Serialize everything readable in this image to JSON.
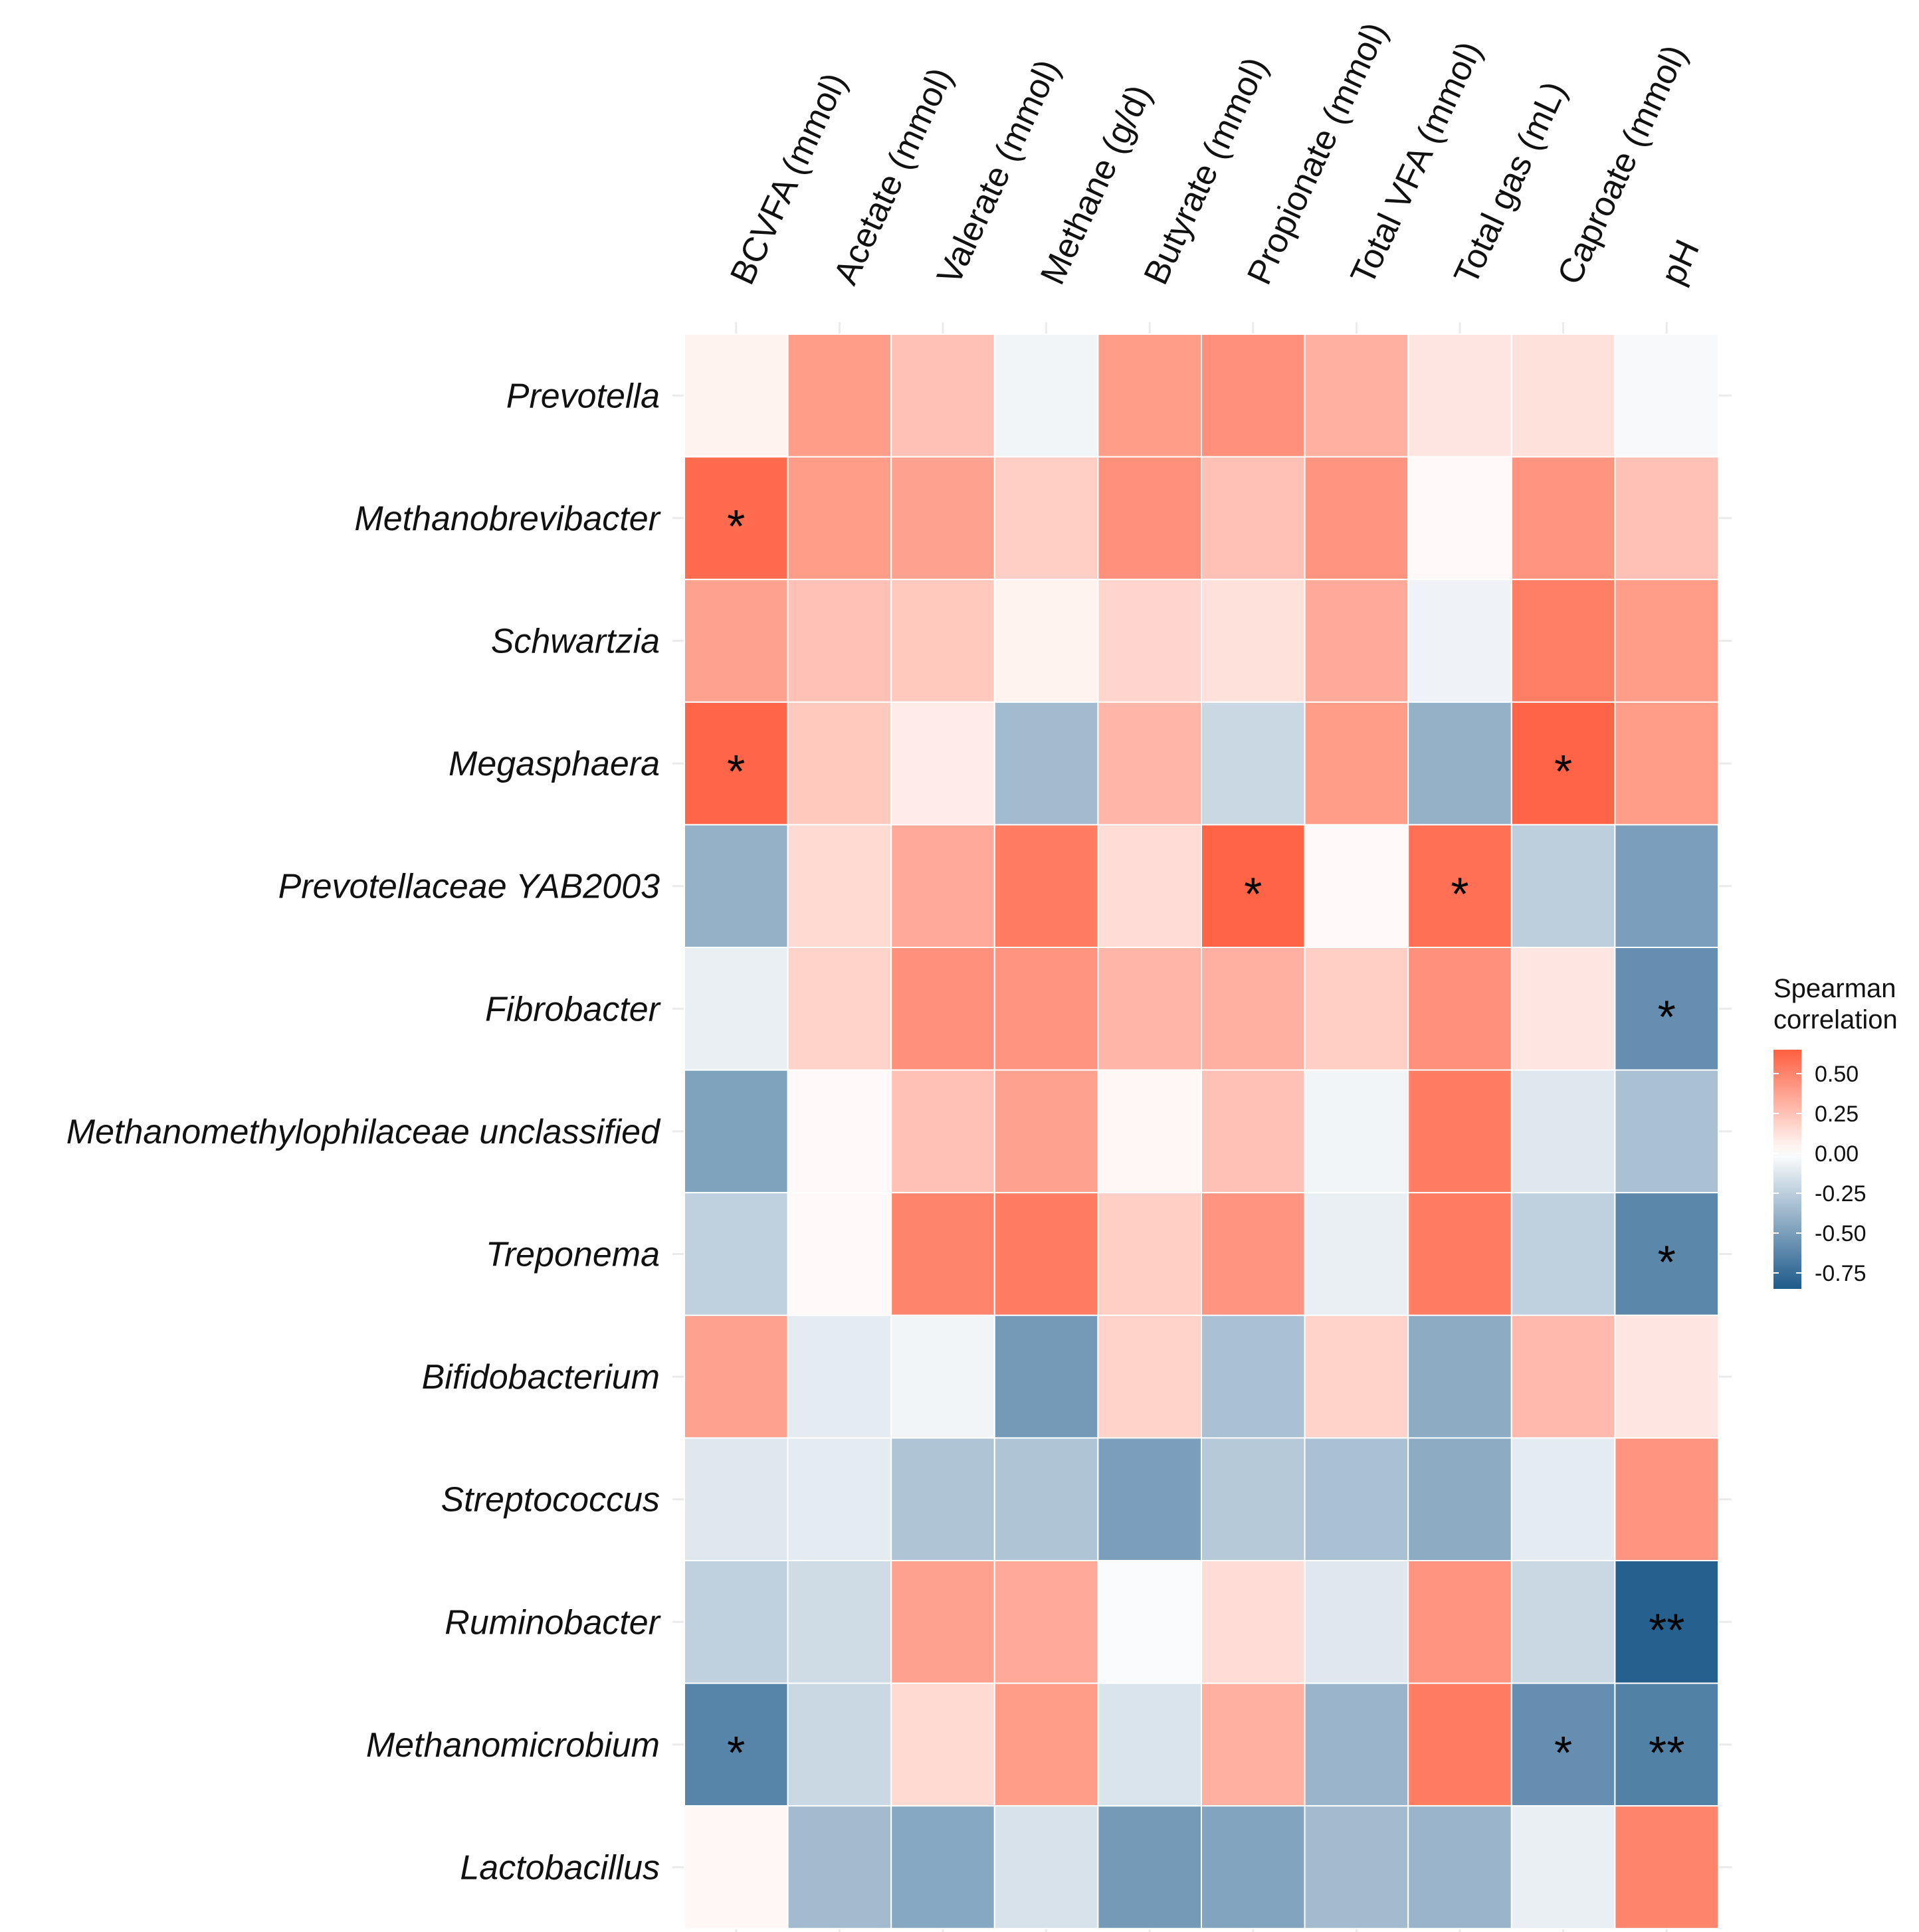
{
  "chart_data": {
    "type": "heatmap",
    "title": "",
    "xlabel": "",
    "ylabel": "",
    "columns": [
      "BCVFA (mmol)",
      "Acetate (mmol)",
      "Valerate (mmol)",
      "Methane (g/d)",
      "Butyrate (mmol)",
      "Propionate (mmol)",
      "Total VFA (mmol)",
      "Total gas (mL)",
      "Caproate (mmol)",
      "pH"
    ],
    "rows": [
      "Prevotella",
      "Methanobrevibacter",
      "Schwartzia",
      "Megasphaera",
      "Prevotellaceae YAB2003",
      "Fibrobacter",
      "Methanomethylophilaceae unclassified",
      "Treponema",
      "Bifidobacterium",
      "Streptococcus",
      "Ruminobacter",
      "Methanomicrobium",
      "Lactobacillus"
    ],
    "values": [
      [
        0.05,
        0.4,
        0.25,
        -0.05,
        0.4,
        0.45,
        0.32,
        0.1,
        0.12,
        -0.03
      ],
      [
        0.6,
        0.4,
        0.38,
        0.2,
        0.45,
        0.25,
        0.43,
        0.02,
        0.43,
        0.25
      ],
      [
        0.38,
        0.25,
        0.22,
        0.05,
        0.17,
        0.12,
        0.35,
        -0.06,
        0.52,
        0.4
      ],
      [
        0.62,
        0.22,
        0.08,
        -0.35,
        0.3,
        -0.2,
        0.4,
        -0.4,
        0.63,
        0.4
      ],
      [
        -0.4,
        0.15,
        0.35,
        0.53,
        0.14,
        0.63,
        0.02,
        0.58,
        -0.25,
        -0.5
      ],
      [
        -0.08,
        0.18,
        0.45,
        0.43,
        0.3,
        0.32,
        0.2,
        0.45,
        0.1,
        -0.58
      ],
      [
        -0.48,
        0.02,
        0.25,
        0.38,
        0.03,
        0.25,
        -0.05,
        0.53,
        -0.12,
        -0.32
      ],
      [
        -0.24,
        0.02,
        0.5,
        0.53,
        0.2,
        0.43,
        -0.08,
        0.53,
        -0.24,
        -0.62
      ],
      [
        0.38,
        -0.1,
        -0.05,
        -0.52,
        0.18,
        -0.32,
        0.18,
        -0.43,
        0.28,
        0.1
      ],
      [
        -0.12,
        -0.1,
        -0.3,
        -0.3,
        -0.5,
        -0.28,
        -0.32,
        -0.43,
        -0.1,
        0.43
      ],
      [
        -0.24,
        -0.18,
        0.38,
        0.35,
        -0.02,
        0.14,
        -0.12,
        0.43,
        -0.2,
        -0.82
      ],
      [
        -0.63,
        -0.2,
        0.15,
        0.4,
        -0.14,
        0.32,
        -0.38,
        0.53,
        -0.58,
        -0.65
      ],
      [
        0.03,
        -0.35,
        -0.45,
        -0.15,
        -0.52,
        -0.47,
        -0.35,
        -0.38,
        -0.08,
        0.5
      ]
    ],
    "significance": [
      [
        "",
        "",
        "",
        "",
        "",
        "",
        "",
        "",
        "",
        ""
      ],
      [
        "*",
        "",
        "",
        "",
        "",
        "",
        "",
        "",
        "",
        ""
      ],
      [
        "",
        "",
        "",
        "",
        "",
        "",
        "",
        "",
        "",
        ""
      ],
      [
        "*",
        "",
        "",
        "",
        "",
        "",
        "",
        "",
        "*",
        ""
      ],
      [
        "",
        "",
        "",
        "",
        "",
        "*",
        "",
        "*",
        "",
        ""
      ],
      [
        "",
        "",
        "",
        "",
        "",
        "",
        "",
        "",
        "",
        "*"
      ],
      [
        "",
        "",
        "",
        "",
        "",
        "",
        "",
        "",
        "",
        ""
      ],
      [
        "",
        "",
        "",
        "",
        "",
        "",
        "",
        "",
        "",
        "*"
      ],
      [
        "",
        "",
        "",
        "",
        "",
        "",
        "",
        "",
        "",
        ""
      ],
      [
        "",
        "",
        "",
        "",
        "",
        "",
        "",
        "",
        "",
        ""
      ],
      [
        "",
        "",
        "",
        "",
        "",
        "",
        "",
        "",
        "",
        "**"
      ],
      [
        "*",
        "",
        "",
        "",
        "",
        "",
        "",
        "",
        "*",
        "**"
      ],
      [
        "",
        "",
        "",
        "",
        "",
        "",
        "",
        "",
        "",
        ""
      ]
    ],
    "legend": {
      "title_line1": "Spearman",
      "title_line2": "correlation",
      "ticks": [
        0.5,
        0.25,
        0.0,
        -0.25,
        -0.5,
        -0.75
      ],
      "tick_labels": [
        "0.50",
        "0.25",
        "0.00",
        "-0.25",
        "-0.50",
        "-0.75"
      ],
      "range": [
        -0.85,
        0.65
      ],
      "placement": "right"
    },
    "colors": {
      "high": "#FF5F40",
      "mid": "#FFFFFF",
      "low": "#1D5A8B",
      "cell_border": "#FFFFFF",
      "grid": "#EBEBEB"
    }
  }
}
